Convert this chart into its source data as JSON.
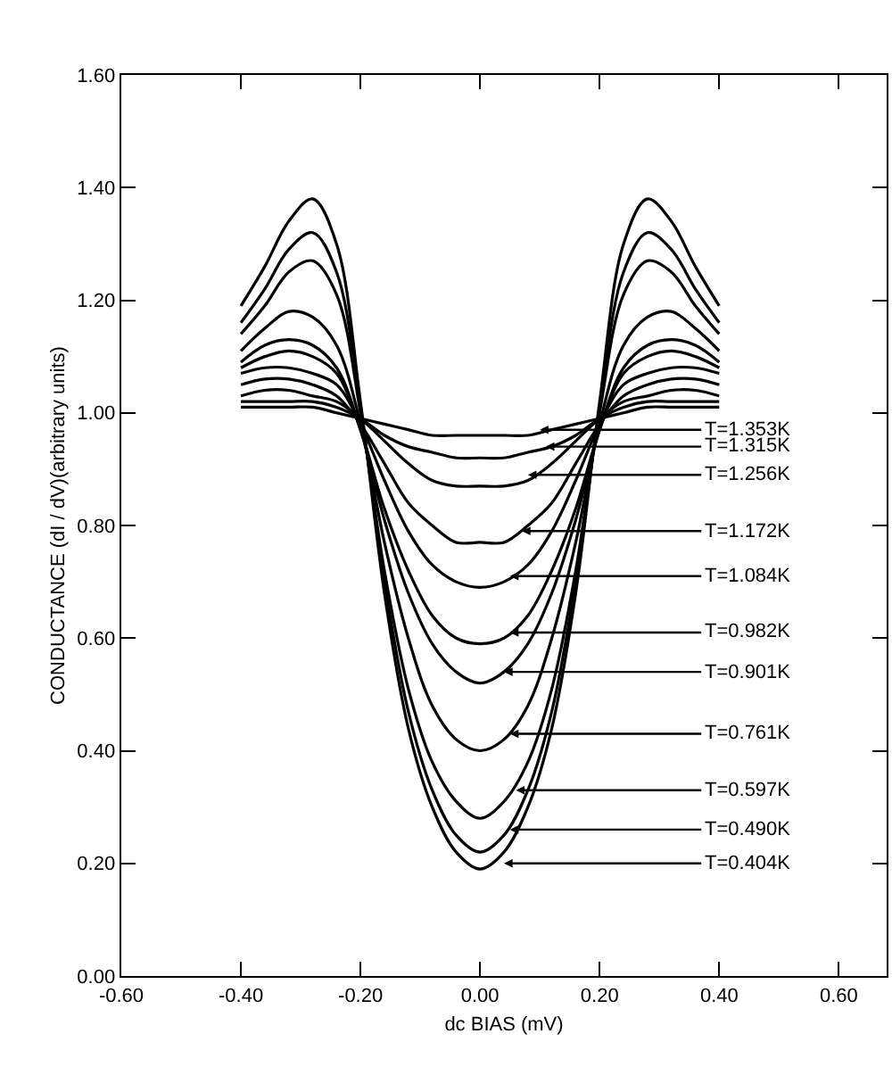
{
  "chart_data": {
    "type": "line",
    "xlabel": "dc BIAS (mV)",
    "ylabel": "CONDUCTANCE (dI / dV)(arbitrary units)",
    "x": [
      -0.4,
      -0.36,
      -0.32,
      -0.28,
      -0.24,
      -0.2,
      -0.16,
      -0.12,
      -0.08,
      -0.04,
      0,
      0.04,
      0.08,
      0.12,
      0.16,
      0.2,
      0.24,
      0.28,
      0.32,
      0.36,
      0.4
    ],
    "series": [
      {
        "color": "#000000",
        "values": [
          1.19,
          1.26,
          1.34,
          1.38,
          1.3,
          1.02,
          0.68,
          0.44,
          0.3,
          0.22,
          0.19,
          0.22,
          0.3,
          0.44,
          0.68,
          1.02,
          1.3,
          1.38,
          1.34,
          1.26,
          1.19
        ]
      },
      {
        "color": "#000000",
        "values": [
          1.16,
          1.22,
          1.29,
          1.32,
          1.25,
          1.01,
          0.7,
          0.47,
          0.33,
          0.25,
          0.22,
          0.25,
          0.33,
          0.47,
          0.7,
          1.01,
          1.25,
          1.32,
          1.29,
          1.22,
          1.16
        ]
      },
      {
        "color": "#000000",
        "values": [
          1.14,
          1.19,
          1.25,
          1.27,
          1.21,
          1.0,
          0.72,
          0.51,
          0.38,
          0.31,
          0.28,
          0.31,
          0.38,
          0.51,
          0.72,
          1.0,
          1.21,
          1.27,
          1.25,
          1.19,
          1.14
        ]
      },
      {
        "color": "#000000",
        "values": [
          1.11,
          1.15,
          1.18,
          1.17,
          1.12,
          0.98,
          0.77,
          0.6,
          0.48,
          0.42,
          0.4,
          0.42,
          0.48,
          0.6,
          0.77,
          0.98,
          1.12,
          1.17,
          1.18,
          1.15,
          1.11
        ]
      },
      {
        "color": "#000000",
        "values": [
          1.09,
          1.12,
          1.13,
          1.12,
          1.08,
          0.97,
          0.81,
          0.68,
          0.59,
          0.54,
          0.52,
          0.54,
          0.59,
          0.68,
          0.81,
          0.97,
          1.08,
          1.12,
          1.13,
          1.12,
          1.09
        ]
      },
      {
        "color": "#000000",
        "values": [
          1.08,
          1.1,
          1.11,
          1.1,
          1.07,
          0.97,
          0.83,
          0.72,
          0.64,
          0.6,
          0.59,
          0.6,
          0.64,
          0.72,
          0.83,
          0.97,
          1.07,
          1.1,
          1.11,
          1.1,
          1.08
        ]
      },
      {
        "color": "#000000",
        "values": [
          1.07,
          1.08,
          1.08,
          1.07,
          1.05,
          0.98,
          0.88,
          0.79,
          0.73,
          0.7,
          0.69,
          0.7,
          0.73,
          0.79,
          0.88,
          0.98,
          1.05,
          1.07,
          1.08,
          1.08,
          1.07
        ]
      },
      {
        "color": "#000000",
        "values": [
          1.05,
          1.06,
          1.06,
          1.05,
          1.03,
          0.98,
          0.91,
          0.84,
          0.8,
          0.77,
          0.77,
          0.77,
          0.8,
          0.84,
          0.91,
          0.98,
          1.03,
          1.05,
          1.06,
          1.06,
          1.05
        ]
      },
      {
        "color": "#000000",
        "values": [
          1.03,
          1.04,
          1.04,
          1.03,
          1.02,
          0.99,
          0.95,
          0.91,
          0.88,
          0.87,
          0.87,
          0.87,
          0.88,
          0.91,
          0.95,
          0.99,
          1.02,
          1.03,
          1.04,
          1.04,
          1.03
        ]
      },
      {
        "color": "#000000",
        "values": [
          1.02,
          1.02,
          1.02,
          1.02,
          1.01,
          0.99,
          0.96,
          0.94,
          0.93,
          0.92,
          0.92,
          0.92,
          0.93,
          0.94,
          0.96,
          0.99,
          1.01,
          1.02,
          1.02,
          1.02,
          1.02
        ]
      },
      {
        "color": "#000000",
        "values": [
          1.01,
          1.01,
          1.01,
          1.01,
          1.0,
          0.99,
          0.98,
          0.97,
          0.96,
          0.96,
          0.96,
          0.96,
          0.96,
          0.97,
          0.98,
          0.99,
          1.0,
          1.01,
          1.01,
          1.01,
          1.01
        ]
      }
    ],
    "annotations": [
      {
        "text": "T=1.353K",
        "x": 0.1,
        "y": 0.97
      },
      {
        "text": "T=1.315K",
        "x": 0.11,
        "y": 0.94
      },
      {
        "text": "T=1.256K",
        "x": 0.08,
        "y": 0.89
      },
      {
        "text": "T=1.172K",
        "x": 0.07,
        "y": 0.79
      },
      {
        "text": "T=1.084K",
        "x": 0.05,
        "y": 0.71
      },
      {
        "text": "T=0.982K",
        "x": 0.05,
        "y": 0.61
      },
      {
        "text": "T=0.901K",
        "x": 0.04,
        "y": 0.54
      },
      {
        "text": "T=0.761K",
        "x": 0.05,
        "y": 0.43
      },
      {
        "text": "T=0.597K",
        "x": 0.06,
        "y": 0.33
      },
      {
        "text": "T=0.490K",
        "x": 0.05,
        "y": 0.26
      },
      {
        "text": "T=0.404K",
        "x": 0.04,
        "y": 0.2
      }
    ],
    "xlim": [
      -0.6,
      0.68
    ],
    "xticks": [
      {
        "value": -0.6,
        "label": "-0.60"
      },
      {
        "value": -0.4,
        "label": "-0.40"
      },
      {
        "value": -0.2,
        "label": "-0.20"
      },
      {
        "value": 0,
        "label": "0.00"
      },
      {
        "value": 0.2,
        "label": "0.20"
      },
      {
        "value": 0.4,
        "label": "0.40"
      },
      {
        "value": 0.6,
        "label": "0.60"
      }
    ],
    "ylim": [
      0,
      1.6
    ],
    "yticks": [
      {
        "value": 0,
        "label": "0.00"
      },
      {
        "value": 0.2,
        "label": "0.20"
      },
      {
        "value": 0.4,
        "label": "0.40"
      },
      {
        "value": 0.6,
        "label": "0.60"
      },
      {
        "value": 0.8,
        "label": "0.80"
      },
      {
        "value": 1,
        "label": "1.00"
      },
      {
        "value": 1.2,
        "label": "1.20"
      },
      {
        "value": 1.4,
        "label": "1.40"
      },
      {
        "value": 1.6,
        "label": "1.60"
      }
    ],
    "grid": false,
    "marker": "none",
    "line_style": "solid"
  }
}
